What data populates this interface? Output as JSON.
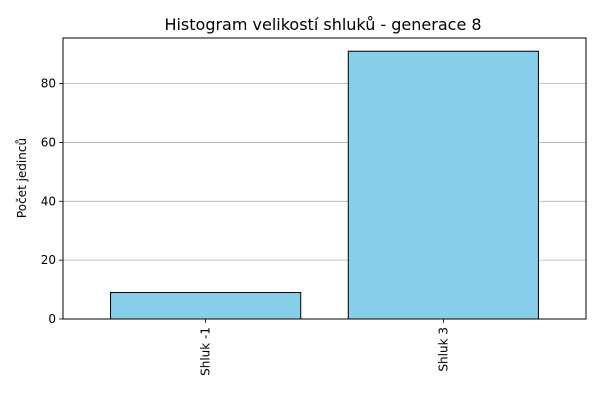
{
  "chart_data": {
    "type": "bar",
    "title": "Histogram velikostí shluků - generace 8",
    "xlabel": "",
    "ylabel": "Počet jedinců",
    "categories": [
      "Shluk -1",
      "Shluk 3"
    ],
    "values": [
      9,
      91
    ],
    "ylim": [
      0,
      95.5
    ],
    "yticks": [
      0,
      20,
      40,
      60,
      80
    ],
    "grid": "y",
    "bar_color": "#87CEEB",
    "edge_color": "#000000",
    "grid_color": "#b0b0b0"
  }
}
